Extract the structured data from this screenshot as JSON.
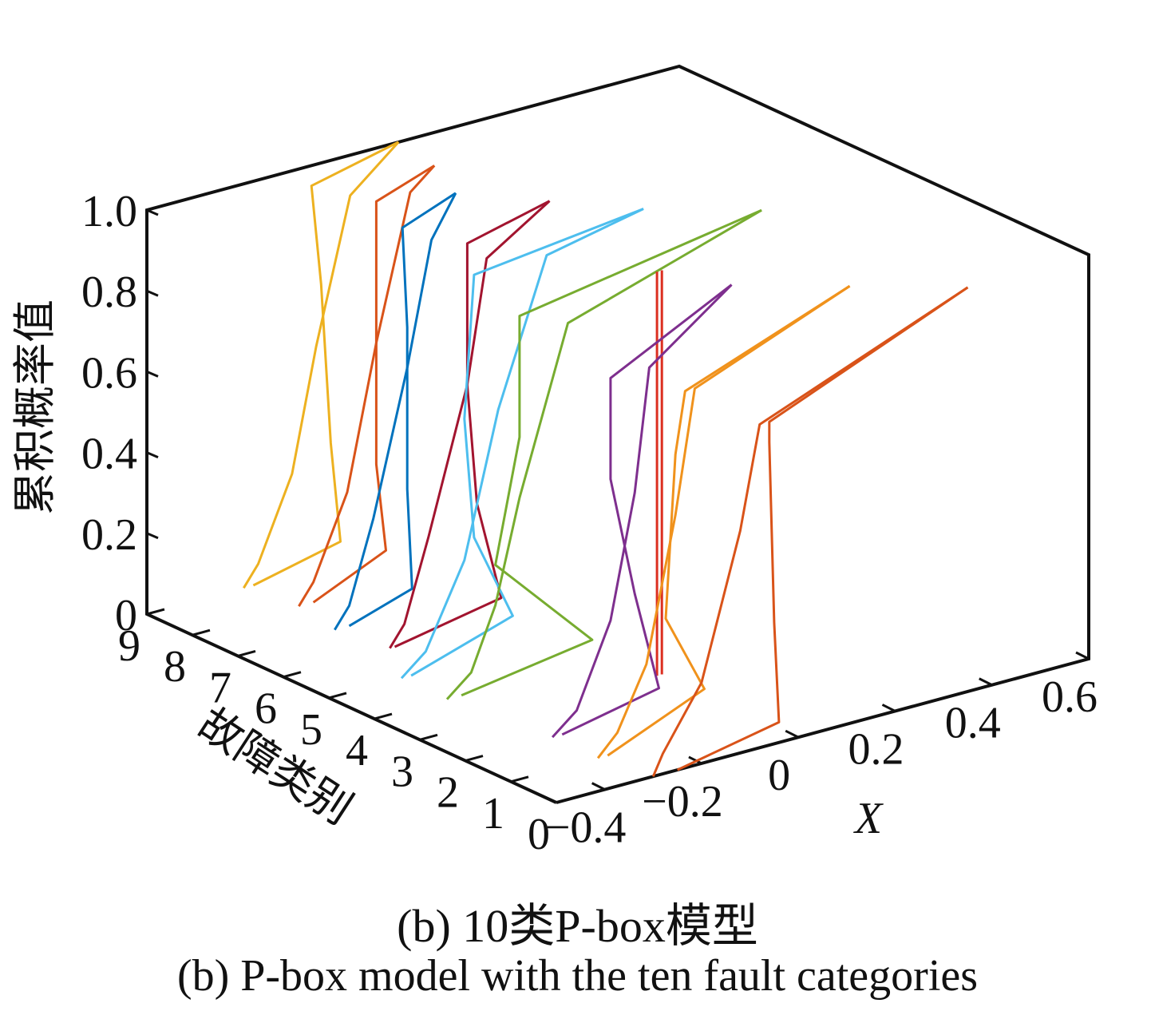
{
  "chart_data": {
    "type": "line",
    "projection": "3d",
    "zlabel": "累积概率值",
    "ylabel": "故障类别",
    "xlabel": "X",
    "z_ticks": [
      "0",
      "0.2",
      "0.4",
      "0.6",
      "0.8",
      "1.0"
    ],
    "y_ticks": [
      "0",
      "1",
      "2",
      "3",
      "4",
      "5",
      "6",
      "7",
      "8",
      "9"
    ],
    "x_ticks": [
      "−0.4",
      "−0.2",
      "0",
      "0.2",
      "0.4",
      "0.6"
    ],
    "zlim": [
      0,
      1
    ],
    "ylim": [
      0,
      9
    ],
    "xlim": [
      -0.5,
      0.6
    ],
    "grid": false,
    "series": [
      {
        "category": 0,
        "color": "#d95319",
        "lower": [
          [
            -0.3,
            0.0
          ],
          [
            -0.28,
            0.05
          ],
          [
            -0.2,
            0.2
          ],
          [
            -0.12,
            0.55
          ],
          [
            -0.08,
            0.8
          ],
          [
            0.35,
            1.0
          ]
        ],
        "upper": [
          [
            -0.25,
            0.0
          ],
          [
            -0.04,
            0.05
          ],
          [
            -0.05,
            0.3
          ],
          [
            -0.06,
            0.75
          ],
          [
            -0.06,
            0.8
          ],
          [
            0.35,
            1.0
          ]
        ]
      },
      {
        "category": 1,
        "color": "#f0921c",
        "lower": [
          [
            -0.32,
            0.0
          ],
          [
            -0.28,
            0.05
          ],
          [
            -0.22,
            0.2
          ],
          [
            -0.16,
            0.55
          ],
          [
            -0.12,
            0.85
          ],
          [
            0.2,
            1.0
          ]
        ],
        "upper": [
          [
            -0.3,
            0.0
          ],
          [
            -0.1,
            0.1
          ],
          [
            -0.18,
            0.3
          ],
          [
            -0.16,
            0.7
          ],
          [
            -0.14,
            0.85
          ],
          [
            0.2,
            1.0
          ]
        ]
      },
      {
        "category": 2,
        "color": "#7e2f8e",
        "lower": [
          [
            -0.32,
            0.0
          ],
          [
            -0.27,
            0.05
          ],
          [
            -0.2,
            0.25
          ],
          [
            -0.15,
            0.55
          ],
          [
            -0.12,
            0.85
          ],
          [
            0.05,
            1.0
          ]
        ],
        "upper": [
          [
            -0.3,
            0.0
          ],
          [
            -0.1,
            0.05
          ],
          [
            -0.15,
            0.3
          ],
          [
            -0.2,
            0.6
          ],
          [
            -0.2,
            0.85
          ],
          [
            0.05,
            1.0
          ]
        ]
      },
      {
        "category": 3,
        "color": "#dc2f20",
        "lower": [
          [
            -0.01,
            0.0
          ],
          [
            -0.01,
            1.0
          ]
        ],
        "upper": [
          [
            0.0,
            0.0
          ],
          [
            0.0,
            1.0
          ]
        ]
      },
      {
        "category": 4,
        "color": "#77ac30",
        "lower": [
          [
            -0.35,
            0.0
          ],
          [
            -0.3,
            0.05
          ],
          [
            -0.25,
            0.2
          ],
          [
            -0.2,
            0.45
          ],
          [
            -0.1,
            0.85
          ],
          [
            0.3,
            1.0
          ]
        ],
        "upper": [
          [
            -0.32,
            0.0
          ],
          [
            -0.05,
            0.05
          ],
          [
            -0.25,
            0.3
          ],
          [
            -0.2,
            0.6
          ],
          [
            -0.2,
            0.9
          ],
          [
            0.3,
            1.0
          ]
        ]
      },
      {
        "category": 5,
        "color": "#4dbeee",
        "lower": [
          [
            -0.35,
            0.0
          ],
          [
            -0.3,
            0.05
          ],
          [
            -0.22,
            0.25
          ],
          [
            -0.15,
            0.6
          ],
          [
            -0.05,
            0.95
          ],
          [
            0.15,
            1.0
          ]
        ],
        "upper": [
          [
            -0.33,
            0.0
          ],
          [
            -0.12,
            0.08
          ],
          [
            -0.2,
            0.3
          ],
          [
            -0.22,
            0.6
          ],
          [
            -0.2,
            0.95
          ],
          [
            0.15,
            1.0
          ]
        ]
      },
      {
        "category": 6,
        "color": "#a2142f",
        "lower": [
          [
            -0.28,
            0.0
          ],
          [
            -0.25,
            0.05
          ],
          [
            -0.2,
            0.25
          ],
          [
            -0.12,
            0.6
          ],
          [
            -0.08,
            0.9
          ],
          [
            0.05,
            1.0
          ]
        ],
        "upper": [
          [
            -0.27,
            0.0
          ],
          [
            -0.05,
            0.05
          ],
          [
            -0.1,
            0.3
          ],
          [
            -0.12,
            0.6
          ],
          [
            -0.12,
            0.95
          ],
          [
            0.05,
            1.0
          ]
        ]
      },
      {
        "category": 7,
        "color": "#0072bd",
        "lower": [
          [
            -0.3,
            0.0
          ],
          [
            -0.27,
            0.05
          ],
          [
            -0.22,
            0.25
          ],
          [
            -0.15,
            0.6
          ],
          [
            -0.1,
            0.9
          ],
          [
            -0.05,
            1.0
          ]
        ],
        "upper": [
          [
            -0.27,
            0.0
          ],
          [
            -0.14,
            0.05
          ],
          [
            -0.15,
            0.3
          ],
          [
            -0.15,
            0.7
          ],
          [
            -0.16,
            0.95
          ],
          [
            -0.05,
            1.0
          ]
        ]
      },
      {
        "category": 8,
        "color": "#d95319",
        "lower": [
          [
            -0.28,
            0.0
          ],
          [
            -0.25,
            0.05
          ],
          [
            -0.18,
            0.25
          ],
          [
            -0.12,
            0.6
          ],
          [
            -0.05,
            0.95
          ],
          [
            0.0,
            1.0
          ]
        ],
        "upper": [
          [
            -0.25,
            0.0
          ],
          [
            -0.1,
            0.08
          ],
          [
            -0.12,
            0.3
          ],
          [
            -0.12,
            0.7
          ],
          [
            -0.12,
            0.95
          ],
          [
            0.0,
            1.0
          ]
        ]
      },
      {
        "category": 9,
        "color": "#edb120",
        "lower": [
          [
            -0.3,
            0.0
          ],
          [
            -0.27,
            0.05
          ],
          [
            -0.2,
            0.25
          ],
          [
            -0.15,
            0.55
          ],
          [
            -0.08,
            0.9
          ],
          [
            0.02,
            1.0
          ]
        ],
        "upper": [
          [
            -0.28,
            0.0
          ],
          [
            -0.1,
            0.05
          ],
          [
            -0.12,
            0.3
          ],
          [
            -0.14,
            0.7
          ],
          [
            -0.16,
            0.95
          ],
          [
            0.02,
            1.0
          ]
        ]
      }
    ]
  },
  "caption": {
    "cn": "(b)  10类P-box模型",
    "en": "(b)  P-box model with the ten fault categories"
  }
}
